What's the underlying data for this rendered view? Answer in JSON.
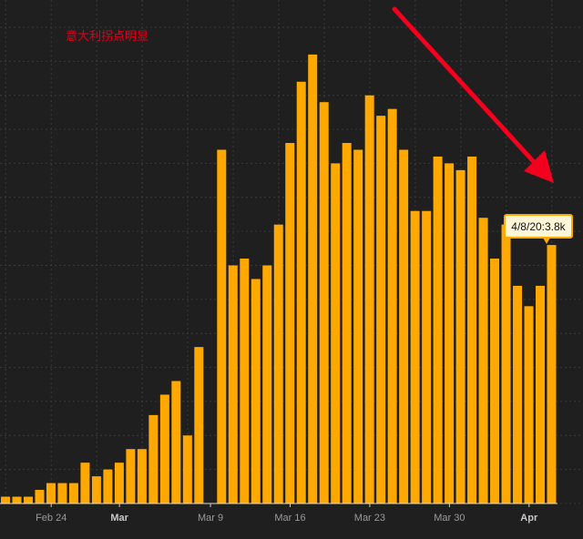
{
  "chart_data": {
    "type": "bar",
    "title": "",
    "xlabel": "",
    "ylabel": "",
    "bar_color": "#ffa800",
    "background_color": "#1f1f1f",
    "grid": true,
    "dates": [
      "2/20",
      "2/21",
      "2/22",
      "2/23",
      "2/24",
      "2/25",
      "2/26",
      "2/27",
      "2/28",
      "2/29",
      "3/1",
      "3/2",
      "3/3",
      "3/4",
      "3/5",
      "3/6",
      "3/7",
      "3/8",
      "3/9",
      "3/10",
      "3/11",
      "3/12",
      "3/13",
      "3/14",
      "3/15",
      "3/16",
      "3/17",
      "3/18",
      "3/19",
      "3/20",
      "3/21",
      "3/22",
      "3/23",
      "3/24",
      "3/25",
      "3/26",
      "3/27",
      "3/28",
      "3/29",
      "3/30",
      "3/31",
      "4/1",
      "4/2",
      "4/3",
      "4/4",
      "4/5",
      "4/6",
      "4/7",
      "4/8"
    ],
    "values": [
      0.1,
      0.1,
      0.1,
      0.2,
      0.3,
      0.3,
      0.3,
      0.6,
      0.4,
      0.5,
      0.6,
      0.8,
      0.8,
      1.3,
      1.6,
      1.8,
      1.0,
      2.3,
      0.0,
      5.2,
      3.5,
      3.6,
      3.3,
      3.5,
      4.1,
      5.3,
      6.2,
      6.6,
      5.9,
      5.0,
      5.3,
      5.2,
      6.0,
      5.7,
      5.8,
      5.2,
      4.3,
      4.3,
      5.1,
      5.0,
      4.9,
      5.1,
      4.2,
      3.6,
      4.1,
      3.2,
      2.9,
      3.2,
      3.8
    ],
    "ylim": [
      0,
      7
    ],
    "x_ticks": [
      {
        "date": "2/24",
        "label": "Feb 24",
        "major": false
      },
      {
        "date": "3/1",
        "label": "Mar",
        "major": true
      },
      {
        "date": "3/9",
        "label": "Mar 9",
        "major": false
      },
      {
        "date": "3/16",
        "label": "Mar 16",
        "major": false
      },
      {
        "date": "3/23",
        "label": "Mar 23",
        "major": false
      },
      {
        "date": "3/30",
        "label": "Mar 30",
        "major": false
      },
      {
        "date": "4/6",
        "label": "Apr",
        "major": true
      }
    ],
    "annotation": {
      "text": "意大利拐点明显",
      "color": "#e0001b"
    },
    "tooltip": {
      "date": "4/8",
      "text": "4/8/20:3.8k"
    }
  }
}
